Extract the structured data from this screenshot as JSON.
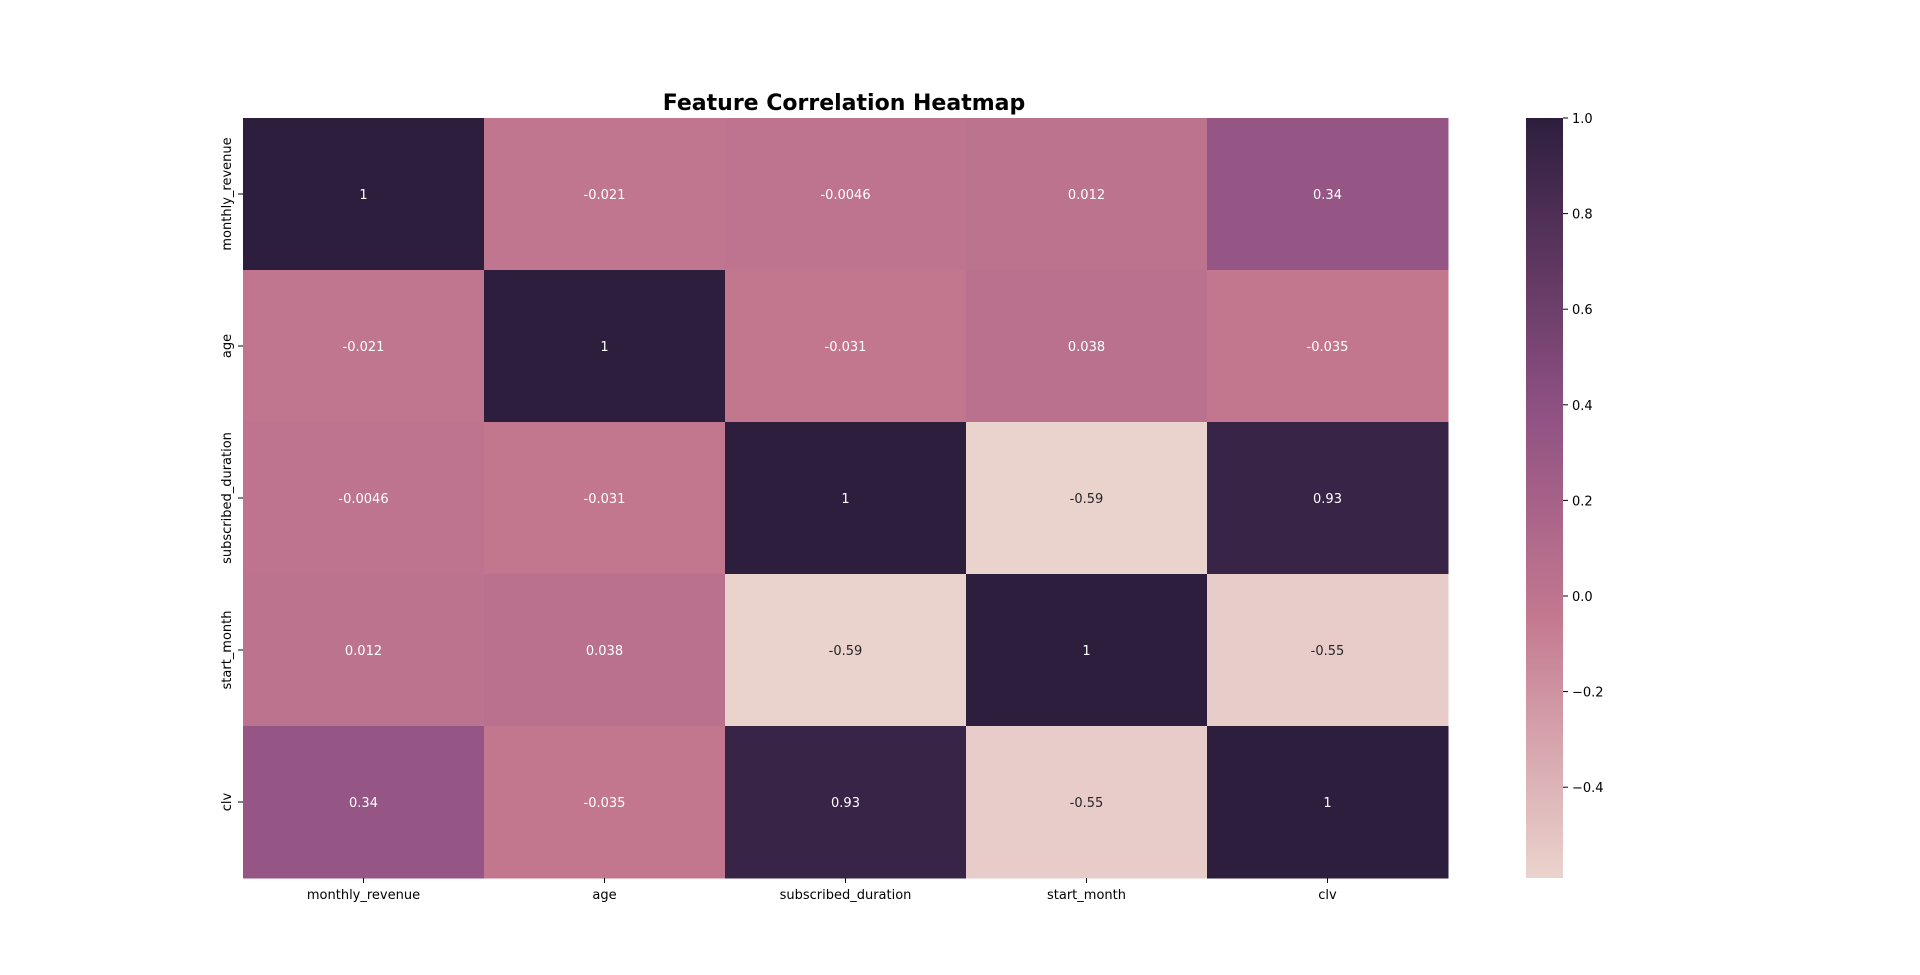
{
  "chart_data": {
    "type": "heatmap",
    "title": "Feature Correlation Heatmap",
    "x_labels": [
      "monthly_revenue",
      "age",
      "subscribed_duration",
      "start_month",
      "clv"
    ],
    "y_labels": [
      "monthly_revenue",
      "age",
      "subscribed_duration",
      "start_month",
      "clv"
    ],
    "values": [
      [
        1,
        -0.021,
        -0.0046,
        0.012,
        0.34
      ],
      [
        -0.021,
        1,
        -0.031,
        0.038,
        -0.035
      ],
      [
        -0.0046,
        -0.031,
        1,
        -0.59,
        0.93
      ],
      [
        0.012,
        0.038,
        -0.59,
        1,
        -0.55
      ],
      [
        0.34,
        -0.035,
        0.93,
        -0.55,
        1
      ]
    ],
    "annotations": [
      [
        "1",
        "-0.021",
        "-0.0046",
        "0.012",
        "0.34"
      ],
      [
        "-0.021",
        "1",
        "-0.031",
        "0.038",
        "-0.035"
      ],
      [
        "-0.0046",
        "-0.031",
        "1",
        "-0.59",
        "0.93"
      ],
      [
        "0.012",
        "0.038",
        "-0.59",
        "1",
        "-0.55"
      ],
      [
        "0.34",
        "-0.035",
        "0.93",
        "-0.55",
        "1"
      ]
    ],
    "colorbar": {
      "vmin": -0.59,
      "vmax": 1.0,
      "ticks": [
        1.0,
        0.8,
        0.6,
        0.4,
        0.2,
        0.0,
        -0.2,
        -0.4
      ],
      "tick_labels": [
        "1.0",
        "0.8",
        "0.6",
        "0.4",
        "0.2",
        "0.0",
        "−0.2",
        "−0.4"
      ]
    },
    "colormap": {
      "stops": [
        "#ebd3cd",
        "#c2778f",
        "#8e5083",
        "#2d1e3e"
      ],
      "positions": [
        0,
        0.35,
        0.62,
        1
      ]
    },
    "grid": false
  }
}
